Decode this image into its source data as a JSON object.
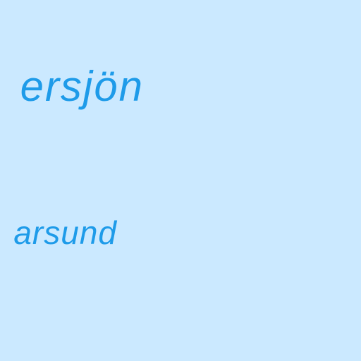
{
  "map": {
    "water_color": "#cbe9ff",
    "label_color": "#1e9be9",
    "labels": [
      {
        "text": "ersjön",
        "kind": "lake"
      },
      {
        "text": "arsund",
        "kind": "sound"
      }
    ]
  }
}
